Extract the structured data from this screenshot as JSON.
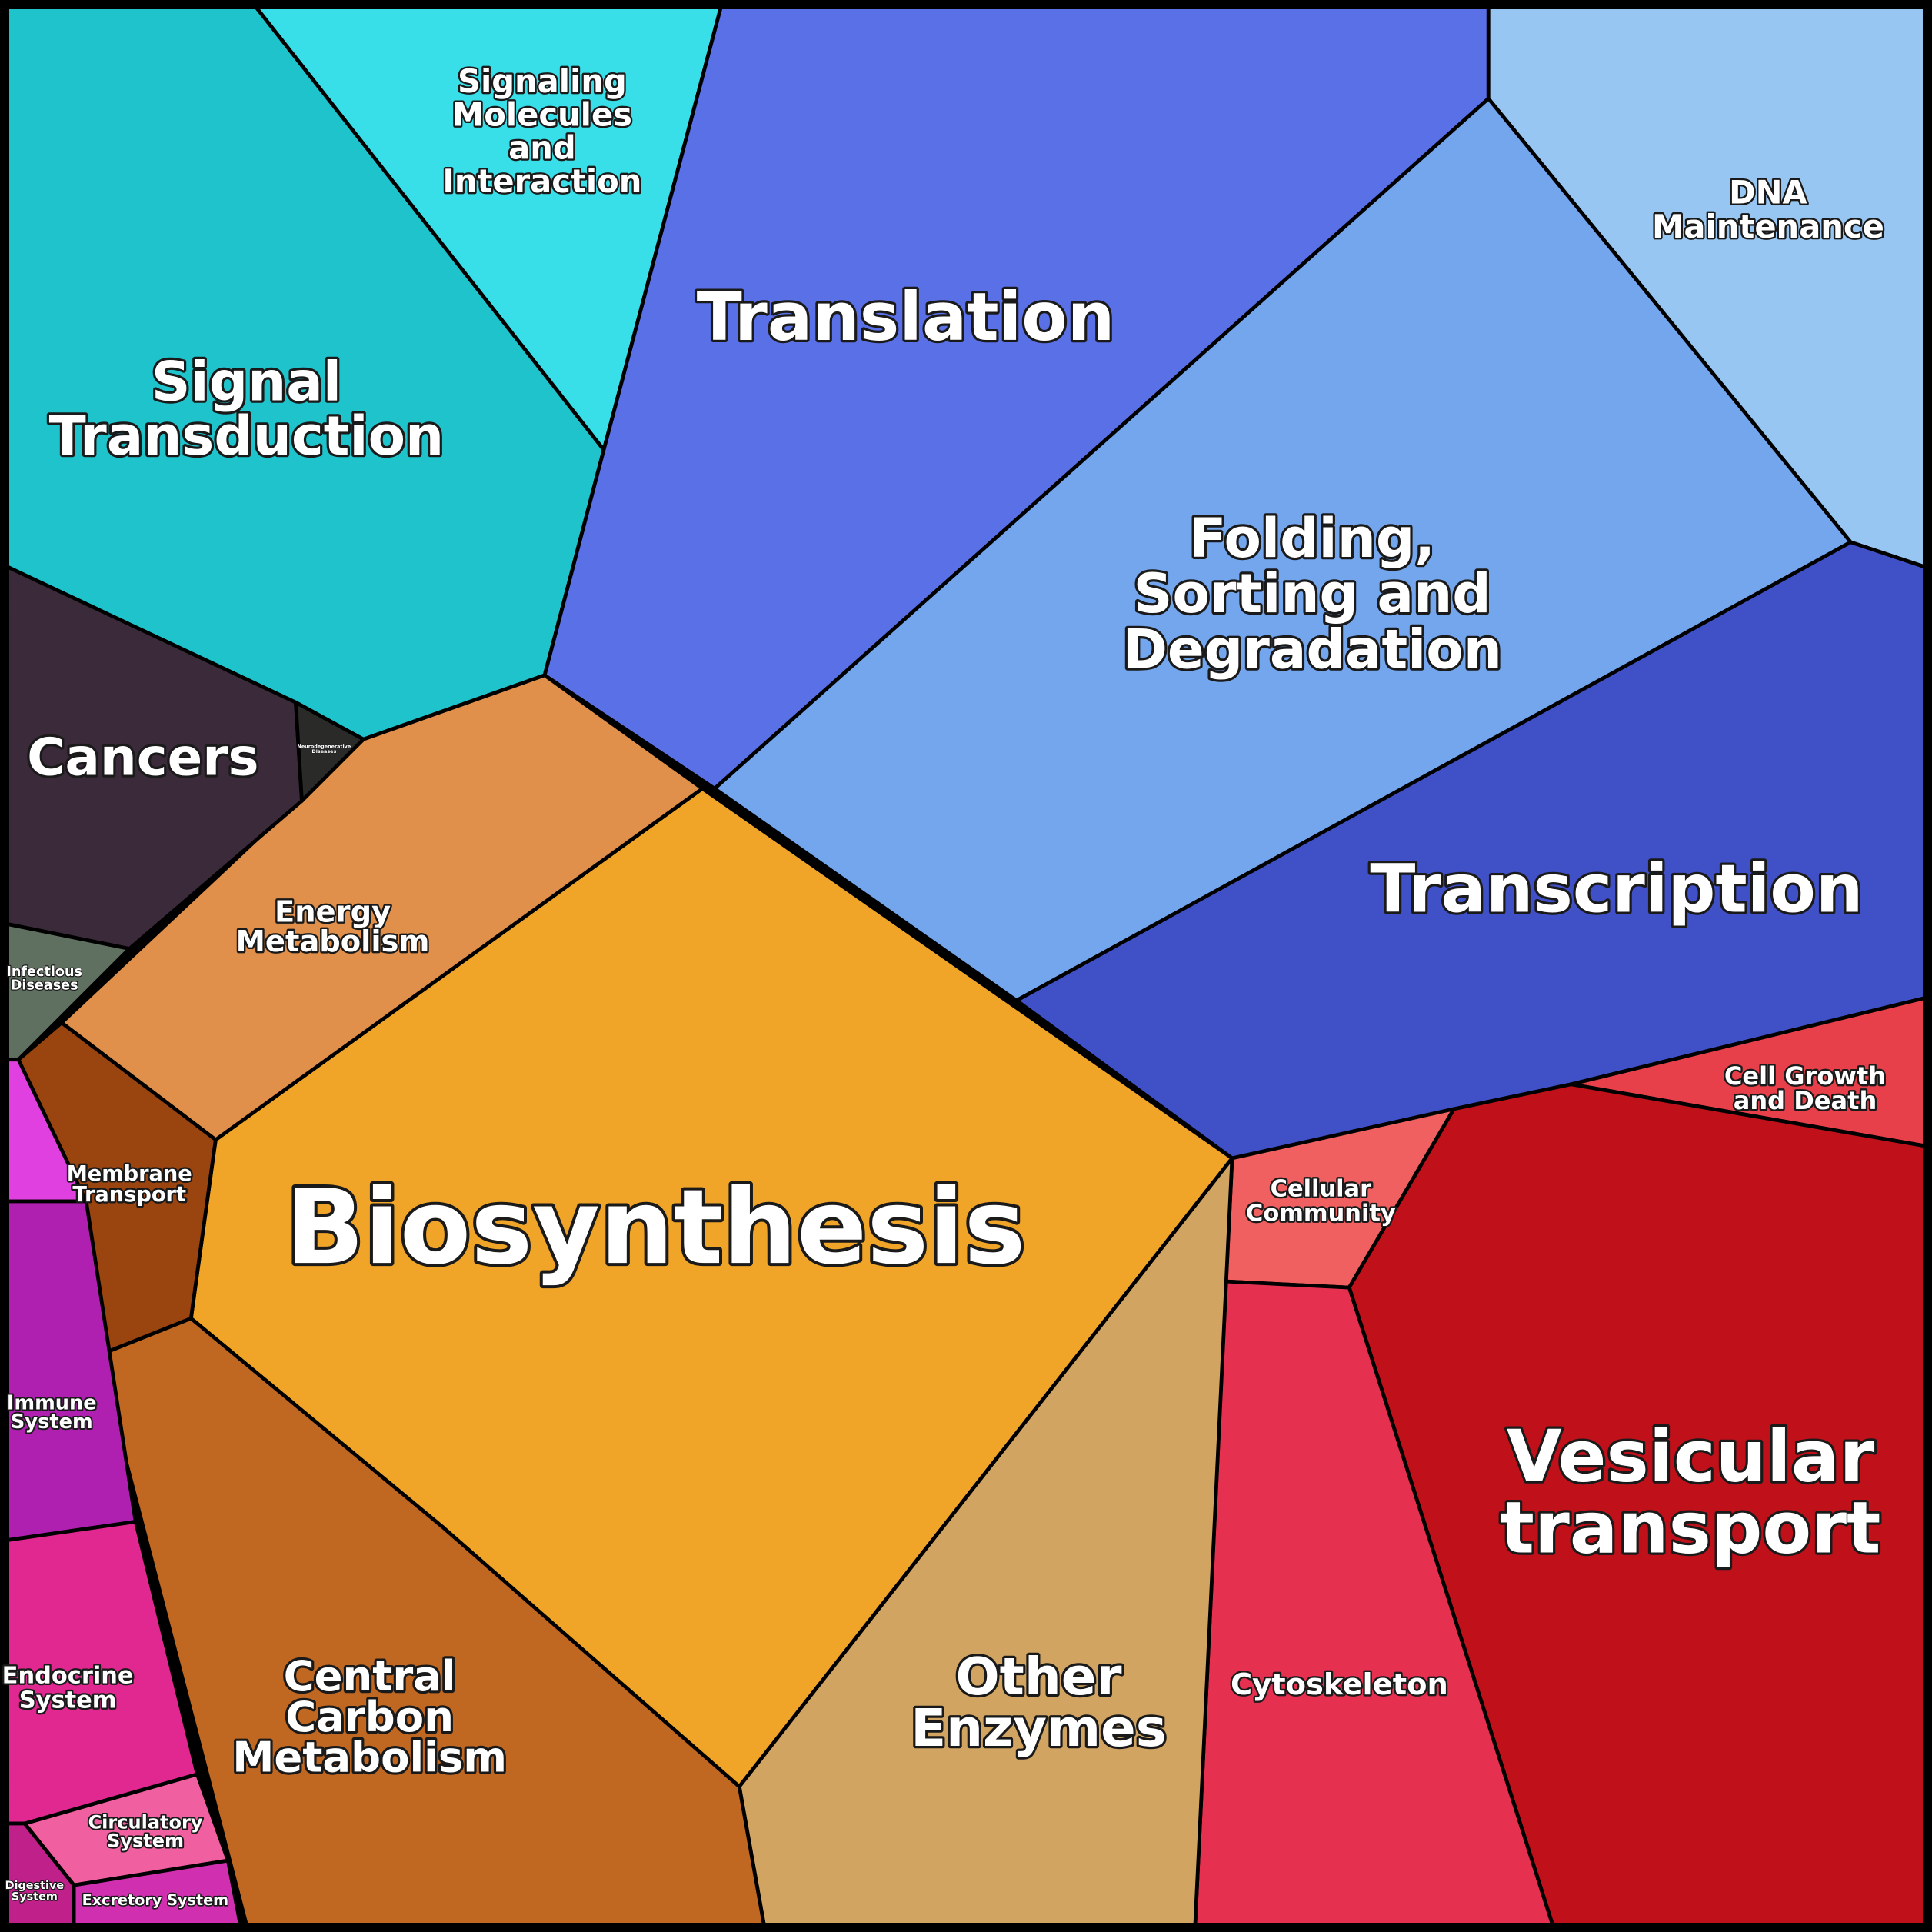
{
  "regions": [
    {
      "lines": [
        "Signal",
        "Transduction"
      ]
    },
    {
      "lines": [
        "Signaling",
        "Molecules",
        "and",
        "Interaction"
      ]
    },
    {
      "lines": [
        "Translation"
      ]
    },
    {
      "lines": [
        "DNA",
        "Maintenance"
      ]
    },
    {
      "lines": [
        "Folding,",
        "Sorting and",
        "Degradation"
      ]
    },
    {
      "lines": [
        "Transcription"
      ]
    },
    {
      "lines": [
        "Cell Growth",
        "and Death"
      ]
    },
    {
      "lines": [
        "Cellular",
        "Community"
      ]
    },
    {
      "lines": [
        "Vesicular",
        "transport"
      ]
    },
    {
      "lines": [
        "Cytoskeleton"
      ]
    },
    {
      "lines": [
        "Biosynthesis"
      ]
    },
    {
      "lines": [
        "Other",
        "Enzymes"
      ]
    },
    {
      "lines": [
        "Central",
        "Carbon",
        "Metabolism"
      ]
    },
    {
      "lines": [
        "Energy",
        "Metabolism"
      ]
    },
    {
      "lines": [
        "Membrane",
        "Transport"
      ]
    },
    {
      "lines": [
        "Cancers"
      ]
    },
    {
      "lines": [
        "Neurodegenerative",
        "Diseases"
      ]
    },
    {
      "lines": [
        "Infectious",
        "Diseases"
      ]
    },
    {
      "lines": [
        "Immune",
        "System"
      ]
    },
    {
      "lines": [
        "Endocrine",
        "System"
      ]
    },
    {
      "lines": [
        "Circulatory",
        "System"
      ]
    },
    {
      "lines": [
        "Digestive",
        "System"
      ]
    },
    {
      "lines": [
        "Excretory System"
      ]
    }
  ]
}
